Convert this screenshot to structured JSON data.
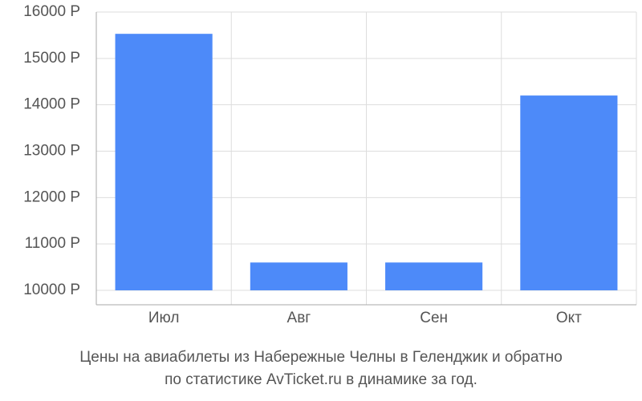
{
  "chart_data": {
    "type": "bar",
    "title": [
      "Цены на авиабилеты из Набережные Челны в Геленджик и обратно",
      "по статистике AvTicket.ru в динамике за год."
    ],
    "categories": [
      "Июл",
      "Авг",
      "Сен",
      "Окт"
    ],
    "values": [
      15530,
      10600,
      10600,
      14200
    ],
    "color": "#4d8af9",
    "ylim": [
      10000,
      16000
    ],
    "yticks": [
      {
        "value": 10000,
        "label": "10000 Р"
      },
      {
        "value": 11000,
        "label": "11000 Р"
      },
      {
        "value": 12000,
        "label": "12000 Р"
      },
      {
        "value": 13000,
        "label": "13000 Р"
      },
      {
        "value": 14000,
        "label": "14000 Р"
      },
      {
        "value": 15000,
        "label": "15000 Р"
      },
      {
        "value": 16000,
        "label": "16000 Р"
      }
    ],
    "grid": true
  }
}
